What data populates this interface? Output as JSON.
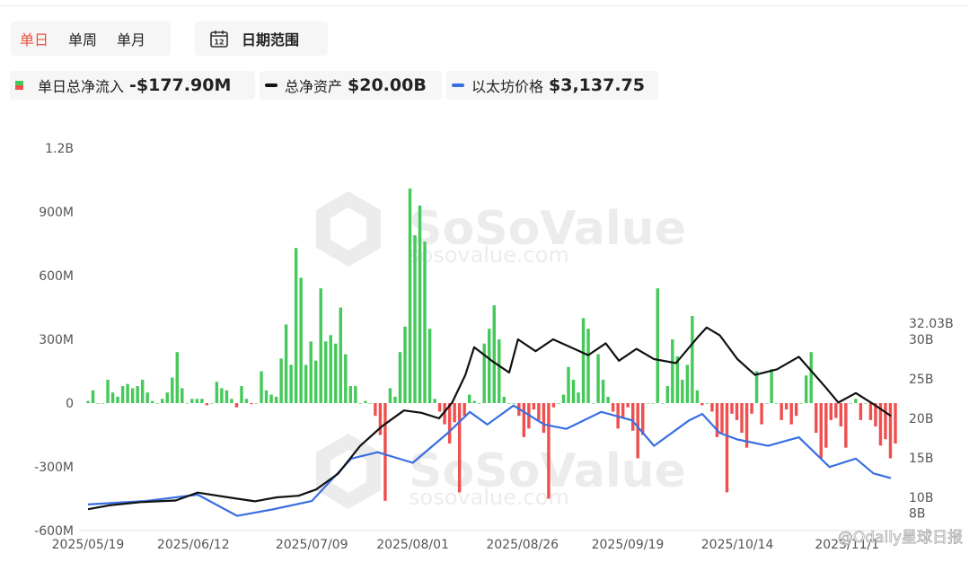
{
  "controls": {
    "tabs": [
      {
        "label": "单日",
        "active": true
      },
      {
        "label": "单周",
        "active": false
      },
      {
        "label": "单月",
        "active": false
      }
    ],
    "date_range_label": "日期范围",
    "calendar_icon_text": "12"
  },
  "legend": {
    "flow_label": "单日总净流入",
    "flow_value": "-$177.90M",
    "assets_label": "总净资产",
    "assets_value": "$20.00B",
    "price_label": "以太坊价格",
    "price_value": "$3,137.75"
  },
  "watermark": {
    "brand": "SoSoValue",
    "url": "sosovalue.com",
    "source": "@Odaily星球日报"
  },
  "colors": {
    "inflow": "#45c95a",
    "outflow": "#ef4f4f",
    "assets": "#111111",
    "price": "#3a6fe0"
  },
  "chart_data": {
    "type": "bar",
    "title": "",
    "start_date": "2025-05-19",
    "end_date": "2025-11-19",
    "x_tick_labels": [
      "2025/05/19",
      "2025/06/12",
      "2025/07/09",
      "2025/08/01",
      "2025/08/26",
      "2025/09/19",
      "2025/10/14",
      "2025/11/1"
    ],
    "y_left": {
      "min": -600,
      "max": 1200,
      "ticks": [
        "-600M",
        "-300M",
        "0",
        "300M",
        "600M",
        "900M",
        "1.2B"
      ],
      "unit": "M USD"
    },
    "y_right": {
      "min": 8,
      "max": 32.03,
      "ticks": [
        "8B",
        "10B",
        "15B",
        "20B",
        "25B",
        "30B",
        "32.03B"
      ],
      "unit": "B USD"
    },
    "series": [
      {
        "name": "单日总净流入",
        "kind": "bar",
        "values_musd": [
          10,
          60,
          0,
          0,
          110,
          50,
          30,
          80,
          90,
          70,
          80,
          110,
          50,
          10,
          0,
          20,
          50,
          120,
          240,
          70,
          0,
          20,
          20,
          20,
          -10,
          0,
          100,
          70,
          60,
          20,
          -20,
          80,
          20,
          -5,
          0,
          150,
          60,
          40,
          30,
          210,
          370,
          180,
          730,
          590,
          180,
          290,
          200,
          540,
          290,
          320,
          280,
          450,
          230,
          80,
          80,
          0,
          10,
          0,
          -60,
          -150,
          -460,
          70,
          30,
          240,
          360,
          1010,
          790,
          930,
          760,
          350,
          20,
          -40,
          -100,
          -190,
          -90,
          -420,
          -60,
          40,
          10,
          0,
          280,
          350,
          460,
          300,
          30,
          0,
          0,
          -60,
          -160,
          -120,
          -30,
          -80,
          -140,
          -450,
          -20,
          0,
          40,
          170,
          110,
          50,
          400,
          350,
          0,
          230,
          110,
          30,
          -40,
          -120,
          -70,
          -20,
          -130,
          -260,
          -150,
          0,
          0,
          540,
          0,
          80,
          300,
          220,
          110,
          180,
          410,
          60,
          -10,
          0,
          -40,
          -160,
          -140,
          -420,
          -50,
          -80,
          -140,
          -210,
          -50,
          150,
          -100,
          0,
          160,
          0,
          -80,
          -30,
          -100,
          -60,
          0,
          130,
          240,
          -140,
          -260,
          -210,
          -80,
          -70,
          -110,
          -210,
          0,
          20,
          -80,
          0,
          -80,
          -110,
          -200,
          -170,
          -260,
          -190
        ],
        "unit": "M USD"
      },
      {
        "name": "总净资产",
        "kind": "line",
        "points": [
          [
            "2025-05-19",
            8.5
          ],
          [
            "2025-05-24",
            9.0
          ],
          [
            "2025-05-31",
            9.4
          ],
          [
            "2025-06-08",
            9.6
          ],
          [
            "2025-06-13",
            10.6
          ],
          [
            "2025-06-20",
            10.0
          ],
          [
            "2025-06-26",
            9.5
          ],
          [
            "2025-07-01",
            10.0
          ],
          [
            "2025-07-06",
            10.2
          ],
          [
            "2025-07-10",
            11.0
          ],
          [
            "2025-07-15",
            13.0
          ],
          [
            "2025-07-20",
            16.5
          ],
          [
            "2025-07-25",
            19.0
          ],
          [
            "2025-07-30",
            21.0
          ],
          [
            "2025-08-03",
            20.7
          ],
          [
            "2025-08-07",
            20.0
          ],
          [
            "2025-08-10",
            22.0
          ],
          [
            "2025-08-13",
            25.5
          ],
          [
            "2025-08-15",
            29.0
          ],
          [
            "2025-08-19",
            27.3
          ],
          [
            "2025-08-23",
            25.8
          ],
          [
            "2025-08-25",
            30.0
          ],
          [
            "2025-08-29",
            28.5
          ],
          [
            "2025-09-02",
            30.0
          ],
          [
            "2025-09-06",
            29.0
          ],
          [
            "2025-09-10",
            28.0
          ],
          [
            "2025-09-14",
            29.5
          ],
          [
            "2025-09-17",
            27.3
          ],
          [
            "2025-09-21",
            28.8
          ],
          [
            "2025-09-25",
            27.5
          ],
          [
            "2025-09-30",
            27.0
          ],
          [
            "2025-10-05",
            30.3
          ],
          [
            "2025-10-07",
            31.5
          ],
          [
            "2025-10-10",
            30.5
          ],
          [
            "2025-10-14",
            27.5
          ],
          [
            "2025-10-18",
            25.5
          ],
          [
            "2025-10-23",
            26.2
          ],
          [
            "2025-10-28",
            27.8
          ],
          [
            "2025-11-03",
            24.0
          ],
          [
            "2025-11-06",
            22.0
          ],
          [
            "2025-11-10",
            23.2
          ],
          [
            "2025-11-14",
            21.8
          ],
          [
            "2025-11-18",
            20.3
          ]
        ],
        "unit": "B USD"
      },
      {
        "name": "以太坊价格",
        "kind": "line",
        "points": [
          [
            "2025-05-19",
            2520
          ],
          [
            "2025-06-01",
            2600
          ],
          [
            "2025-06-13",
            2750
          ],
          [
            "2025-06-22",
            2250
          ],
          [
            "2025-06-30",
            2400
          ],
          [
            "2025-07-09",
            2600
          ],
          [
            "2025-07-18",
            3600
          ],
          [
            "2025-07-24",
            3750
          ],
          [
            "2025-08-01",
            3500
          ],
          [
            "2025-08-09",
            4200
          ],
          [
            "2025-08-14",
            4700
          ],
          [
            "2025-08-18",
            4400
          ],
          [
            "2025-08-24",
            4850
          ],
          [
            "2025-08-31",
            4400
          ],
          [
            "2025-09-05",
            4300
          ],
          [
            "2025-09-13",
            4700
          ],
          [
            "2025-09-20",
            4500
          ],
          [
            "2025-09-25",
            3900
          ],
          [
            "2025-10-03",
            4500
          ],
          [
            "2025-10-06",
            4650
          ],
          [
            "2025-10-10",
            4200
          ],
          [
            "2025-10-14",
            4050
          ],
          [
            "2025-10-21",
            3900
          ],
          [
            "2025-10-28",
            4100
          ],
          [
            "2025-11-04",
            3400
          ],
          [
            "2025-11-10",
            3600
          ],
          [
            "2025-11-14",
            3250
          ],
          [
            "2025-11-18",
            3137.75
          ]
        ],
        "unit": "USD"
      }
    ]
  }
}
